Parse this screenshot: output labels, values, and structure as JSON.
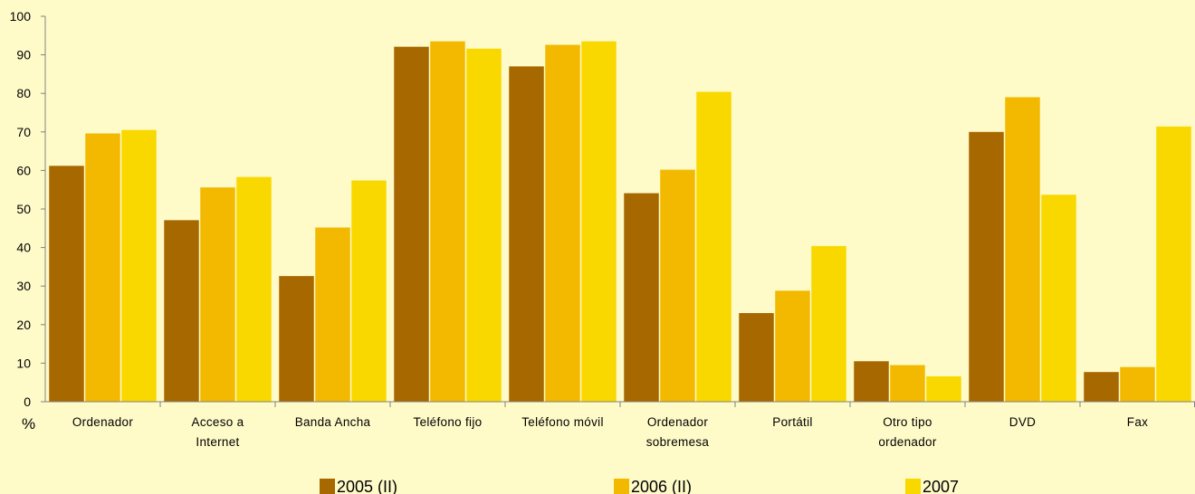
{
  "chart_data": {
    "type": "bar",
    "categories": [
      [
        "Ordenador"
      ],
      [
        "Acceso a",
        "Internet"
      ],
      [
        "Banda Ancha"
      ],
      [
        "Teléfono fijo"
      ],
      [
        "Teléfono móvil"
      ],
      [
        "Ordenador",
        "sobremesa"
      ],
      [
        "Portátil"
      ],
      [
        "Otro tipo",
        "ordenador"
      ],
      [
        "DVD"
      ],
      [
        "Fax"
      ]
    ],
    "series": [
      {
        "name": "2005 (II)",
        "color": "#a86800",
        "values": [
          61.2,
          47.1,
          32.6,
          92.1,
          87.0,
          54.1,
          23.0,
          10.5,
          70.0,
          7.7
        ]
      },
      {
        "name": "2006 (II)",
        "color": "#f2b900",
        "values": [
          69.6,
          55.6,
          45.2,
          93.5,
          92.6,
          60.2,
          28.8,
          9.5,
          79.0,
          9.0
        ]
      },
      {
        "name": "2007",
        "color": "#f9d800",
        "values": [
          70.5,
          58.3,
          57.4,
          91.6,
          93.5,
          80.4,
          40.4,
          6.6,
          53.7,
          71.4
        ]
      }
    ],
    "ylim": [
      0,
      100
    ],
    "yticks": [
      0,
      10,
      20,
      30,
      40,
      50,
      60,
      70,
      80,
      90,
      100
    ],
    "ylabel": "%",
    "grid": false,
    "legend": "bottom"
  }
}
